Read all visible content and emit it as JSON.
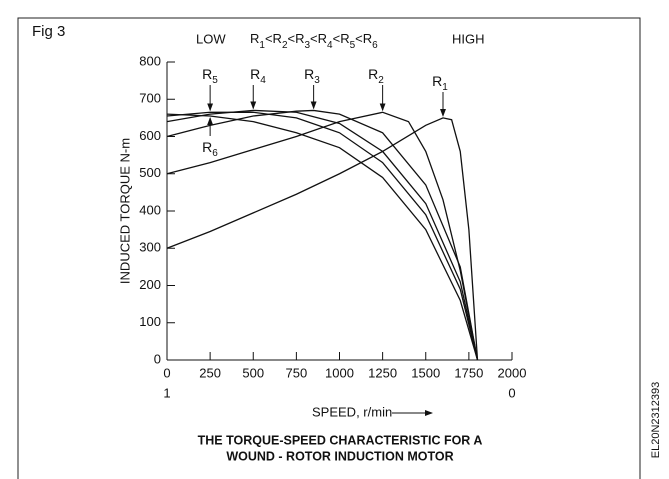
{
  "chart_data": {
    "type": "line",
    "figure_label": "Fig 3",
    "low_label": "LOW",
    "order_label": "R1<R2<R3<R4<R5<R6",
    "high_label": "HIGH",
    "title": [
      "THE TORQUE-SPEED CHARACTERISTIC FOR A",
      "WOUND - ROTOR INDUCTION MOTOR"
    ],
    "xlabel": "SPEED, r/min",
    "ylabel": "INDUCED TORQUE N-m",
    "slip_ticks": [
      {
        "value": 0,
        "label": "1"
      },
      {
        "value": 2000,
        "label": "0"
      }
    ],
    "side_code": "EL20N2312393",
    "xlim": [
      0,
      2000
    ],
    "ylim": [
      0,
      800
    ],
    "xticks": [
      0,
      250,
      500,
      750,
      1000,
      1250,
      1500,
      1750,
      2000
    ],
    "yticks": [
      0,
      100,
      200,
      300,
      400,
      500,
      600,
      700,
      800
    ],
    "series": [
      {
        "name": "R1",
        "color": "#111111",
        "x": [
          0,
          250,
          500,
          750,
          1000,
          1250,
          1500,
          1600,
          1650,
          1700,
          1750,
          1800
        ],
        "values": [
          300,
          345,
          395,
          445,
          500,
          560,
          630,
          650,
          645,
          560,
          350,
          0
        ]
      },
      {
        "name": "R2",
        "color": "#111111",
        "x": [
          0,
          250,
          500,
          750,
          1000,
          1250,
          1400,
          1500,
          1600,
          1700,
          1800
        ],
        "values": [
          500,
          530,
          565,
          600,
          640,
          665,
          640,
          560,
          430,
          240,
          0
        ]
      },
      {
        "name": "R3",
        "color": "#111111",
        "x": [
          0,
          250,
          500,
          750,
          850,
          1000,
          1250,
          1500,
          1700,
          1800
        ],
        "values": [
          600,
          630,
          655,
          668,
          670,
          660,
          610,
          470,
          250,
          0
        ]
      },
      {
        "name": "R4",
        "color": "#111111",
        "x": [
          0,
          250,
          500,
          750,
          1000,
          1250,
          1500,
          1700,
          1800
        ],
        "values": [
          640,
          660,
          670,
          665,
          635,
          560,
          420,
          210,
          0
        ]
      },
      {
        "name": "R5",
        "color": "#111111",
        "x": [
          0,
          250,
          500,
          750,
          1000,
          1250,
          1500,
          1700,
          1800
        ],
        "values": [
          655,
          665,
          665,
          650,
          610,
          530,
          390,
          190,
          0
        ]
      },
      {
        "name": "R6",
        "color": "#111111",
        "x": [
          0,
          250,
          500,
          750,
          1000,
          1250,
          1500,
          1700,
          1800
        ],
        "values": [
          660,
          655,
          640,
          610,
          570,
          490,
          350,
          160,
          0
        ]
      }
    ]
  }
}
